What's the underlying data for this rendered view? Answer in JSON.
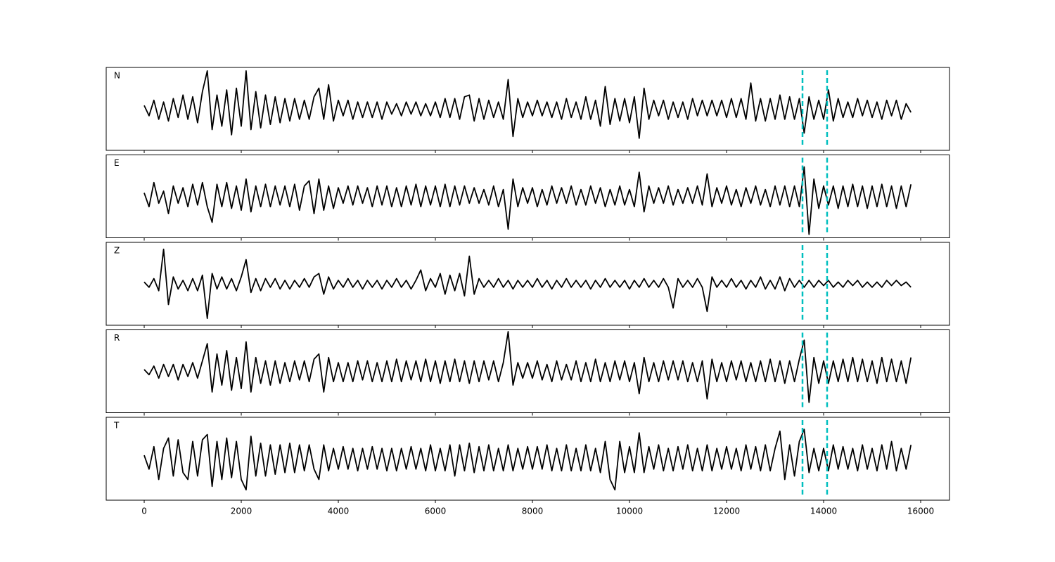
{
  "chart_data": {
    "type": "line",
    "layout": "stacked",
    "x": [
      0,
      100,
      200,
      300,
      400,
      500,
      600,
      700,
      800,
      900,
      1000,
      1100,
      1200,
      1300,
      1400,
      1500,
      1600,
      1700,
      1800,
      1900,
      2000,
      2100,
      2200,
      2300,
      2400,
      2500,
      2600,
      2700,
      2800,
      2900,
      3000,
      3100,
      3200,
      3300,
      3400,
      3500,
      3600,
      3700,
      3800,
      3900,
      4000,
      4100,
      4200,
      4300,
      4400,
      4500,
      4600,
      4700,
      4800,
      4900,
      5000,
      5100,
      5200,
      5300,
      5400,
      5500,
      5600,
      5700,
      5800,
      5900,
      6000,
      6100,
      6200,
      6300,
      6400,
      6500,
      6600,
      6700,
      6800,
      6900,
      7000,
      7100,
      7200,
      7300,
      7400,
      7500,
      7600,
      7700,
      7800,
      7900,
      8000,
      8100,
      8200,
      8300,
      8400,
      8500,
      8600,
      8700,
      8800,
      8900,
      9000,
      9100,
      9200,
      9300,
      9400,
      9500,
      9600,
      9700,
      9800,
      9900,
      10000,
      10100,
      10200,
      10300,
      10400,
      10500,
      10600,
      10700,
      10800,
      10900,
      11000,
      11100,
      11200,
      11300,
      11400,
      11500,
      11600,
      11700,
      11800,
      11900,
      12000,
      12100,
      12200,
      12300,
      12400,
      12500,
      12600,
      12700,
      12800,
      12900,
      13000,
      13100,
      13200,
      13300,
      13400,
      13500,
      13600,
      13700,
      13800,
      13900,
      14000,
      14100,
      14200,
      14300,
      14400,
      14500,
      14600,
      14700,
      14800,
      14900,
      15000,
      15100,
      15200,
      15300,
      15400,
      15500,
      15600,
      15700,
      15800
    ],
    "series": [
      {
        "name": "N",
        "color": "#000000",
        "values": [
          0.1,
          -0.2,
          0.25,
          -0.3,
          0.2,
          -0.35,
          0.3,
          -0.25,
          0.4,
          -0.3,
          0.35,
          -0.4,
          0.5,
          1.1,
          -0.6,
          0.4,
          -0.5,
          0.55,
          -0.75,
          0.6,
          -0.5,
          1.1,
          -0.6,
          0.5,
          -0.55,
          0.4,
          -0.45,
          0.35,
          -0.4,
          0.3,
          -0.35,
          0.3,
          -0.3,
          0.25,
          -0.3,
          0.35,
          0.6,
          -0.3,
          0.7,
          -0.35,
          0.25,
          -0.2,
          0.25,
          -0.3,
          0.2,
          -0.25,
          0.2,
          -0.25,
          0.2,
          -0.3,
          0.2,
          -0.15,
          0.15,
          -0.2,
          0.2,
          -0.15,
          0.2,
          -0.2,
          0.15,
          -0.2,
          0.2,
          -0.25,
          0.3,
          -0.25,
          0.3,
          -0.3,
          0.35,
          0.4,
          -0.35,
          0.3,
          -0.3,
          0.25,
          -0.25,
          0.2,
          -0.3,
          0.85,
          -0.8,
          0.3,
          -0.25,
          0.2,
          -0.2,
          0.25,
          -0.2,
          0.2,
          -0.25,
          0.2,
          -0.3,
          0.3,
          -0.25,
          0.2,
          -0.3,
          0.35,
          -0.3,
          0.25,
          -0.5,
          0.65,
          -0.45,
          0.3,
          -0.35,
          0.3,
          -0.4,
          0.35,
          -0.85,
          0.6,
          -0.3,
          0.25,
          -0.2,
          0.25,
          -0.3,
          0.2,
          -0.25,
          0.2,
          -0.3,
          0.3,
          -0.2,
          0.25,
          -0.2,
          0.25,
          -0.2,
          0.25,
          -0.25,
          0.3,
          -0.25,
          0.3,
          -0.3,
          0.75,
          -0.35,
          0.3,
          -0.35,
          0.3,
          -0.3,
          0.4,
          -0.3,
          0.35,
          -0.3,
          0.3,
          -0.7,
          0.35,
          -0.3,
          0.25,
          -0.3,
          0.55,
          -0.35,
          0.3,
          -0.25,
          0.2,
          -0.25,
          0.3,
          -0.2,
          0.25,
          -0.25,
          0.2,
          -0.3,
          0.25,
          -0.2,
          0.25,
          -0.3,
          0.15,
          -0.1
        ]
      },
      {
        "name": "E",
        "color": "#000000",
        "values": [
          0.1,
          -0.3,
          0.4,
          -0.2,
          0.15,
          -0.5,
          0.3,
          -0.2,
          0.25,
          -0.3,
          0.35,
          -0.25,
          0.4,
          -0.3,
          -0.75,
          0.35,
          -0.3,
          0.4,
          -0.35,
          0.3,
          -0.4,
          0.5,
          -0.45,
          0.3,
          -0.3,
          0.35,
          -0.3,
          0.3,
          -0.25,
          0.3,
          -0.3,
          0.35,
          -0.4,
          0.3,
          0.45,
          -0.5,
          0.5,
          -0.4,
          0.3,
          -0.35,
          0.25,
          -0.2,
          0.3,
          -0.25,
          0.3,
          -0.2,
          0.25,
          -0.3,
          0.3,
          -0.25,
          0.3,
          -0.3,
          0.25,
          -0.3,
          0.3,
          -0.25,
          0.35,
          -0.3,
          0.3,
          -0.25,
          0.3,
          -0.3,
          0.35,
          -0.3,
          0.3,
          -0.25,
          0.3,
          -0.2,
          0.25,
          -0.2,
          0.2,
          -0.25,
          0.3,
          -0.3,
          0.2,
          -0.95,
          0.5,
          -0.3,
          0.25,
          -0.2,
          0.25,
          -0.3,
          0.2,
          -0.25,
          0.3,
          -0.2,
          0.25,
          -0.2,
          0.3,
          -0.25,
          0.2,
          -0.25,
          0.3,
          -0.2,
          0.25,
          -0.3,
          0.2,
          -0.25,
          0.3,
          -0.25,
          0.2,
          -0.3,
          0.7,
          -0.45,
          0.3,
          -0.2,
          0.25,
          -0.2,
          0.3,
          -0.25,
          0.2,
          -0.2,
          0.25,
          -0.2,
          0.3,
          -0.25,
          0.65,
          -0.3,
          0.25,
          -0.2,
          0.3,
          -0.25,
          0.2,
          -0.3,
          0.25,
          -0.2,
          0.3,
          -0.25,
          0.2,
          -0.3,
          0.3,
          -0.25,
          0.3,
          -0.3,
          0.3,
          -0.3,
          0.85,
          -1.1,
          0.5,
          -0.35,
          0.3,
          -0.25,
          0.3,
          -0.35,
          0.3,
          -0.3,
          0.35,
          -0.3,
          0.3,
          -0.35,
          0.3,
          -0.3,
          0.35,
          -0.3,
          0.3,
          -0.35,
          0.3,
          -0.3,
          0.35
        ]
      },
      {
        "name": "Z",
        "color": "#000000",
        "values": [
          0.05,
          -0.1,
          0.15,
          -0.2,
          1.0,
          -0.6,
          0.2,
          -0.15,
          0.1,
          -0.2,
          0.15,
          -0.2,
          0.25,
          -1.0,
          0.3,
          -0.15,
          0.2,
          -0.15,
          0.15,
          -0.2,
          0.2,
          0.7,
          -0.25,
          0.15,
          -0.2,
          0.15,
          -0.1,
          0.15,
          -0.15,
          0.1,
          -0.15,
          0.1,
          -0.1,
          0.15,
          -0.1,
          0.2,
          0.3,
          -0.3,
          0.2,
          -0.15,
          0.1,
          -0.1,
          0.15,
          -0.1,
          0.1,
          -0.15,
          0.1,
          -0.1,
          0.1,
          -0.15,
          0.1,
          -0.1,
          0.15,
          -0.1,
          0.1,
          -0.15,
          0.1,
          0.4,
          -0.2,
          0.15,
          -0.1,
          0.3,
          -0.3,
          0.25,
          -0.2,
          0.3,
          -0.35,
          0.8,
          -0.3,
          0.15,
          -0.1,
          0.1,
          -0.1,
          0.15,
          -0.1,
          0.1,
          -0.15,
          0.1,
          -0.1,
          0.1,
          -0.1,
          0.15,
          -0.1,
          0.1,
          -0.15,
          0.1,
          -0.1,
          0.15,
          -0.1,
          0.1,
          -0.1,
          0.1,
          -0.15,
          0.1,
          -0.1,
          0.15,
          -0.1,
          0.1,
          -0.1,
          0.1,
          -0.15,
          0.1,
          -0.1,
          0.15,
          -0.1,
          0.1,
          -0.1,
          0.15,
          -0.1,
          -0.7,
          0.15,
          -0.1,
          0.1,
          -0.1,
          0.15,
          -0.1,
          -0.8,
          0.2,
          -0.1,
          0.1,
          -0.1,
          0.15,
          -0.1,
          0.1,
          -0.15,
          0.1,
          -0.1,
          0.2,
          -0.15,
          0.1,
          -0.15,
          0.2,
          -0.2,
          0.15,
          -0.1,
          0.1,
          -0.1,
          0.1,
          -0.1,
          0.1,
          -0.05,
          0.1,
          -0.1,
          0.05,
          -0.1,
          0.1,
          -0.05,
          0.1,
          -0.1,
          0.05,
          -0.1,
          0.05,
          -0.1,
          0.1,
          -0.05,
          0.1,
          -0.05,
          0.05,
          -0.1
        ]
      },
      {
        "name": "R",
        "color": "#000000",
        "values": [
          0.05,
          -0.1,
          0.15,
          -0.2,
          0.2,
          -0.15,
          0.2,
          -0.25,
          0.2,
          -0.15,
          0.25,
          -0.2,
          0.3,
          0.8,
          -0.6,
          0.5,
          -0.4,
          0.6,
          -0.55,
          0.4,
          -0.5,
          0.85,
          -0.6,
          0.4,
          -0.35,
          0.3,
          -0.4,
          0.3,
          -0.35,
          0.25,
          -0.3,
          0.3,
          -0.25,
          0.3,
          -0.3,
          0.35,
          0.5,
          -0.6,
          0.4,
          -0.3,
          0.25,
          -0.3,
          0.25,
          -0.3,
          0.3,
          -0.25,
          0.3,
          -0.3,
          0.25,
          -0.3,
          0.3,
          -0.3,
          0.35,
          -0.3,
          0.3,
          -0.25,
          0.3,
          -0.3,
          0.35,
          -0.3,
          0.3,
          -0.35,
          0.3,
          -0.3,
          0.35,
          -0.3,
          0.3,
          -0.35,
          0.3,
          -0.3,
          0.3,
          -0.25,
          0.3,
          -0.3,
          0.25,
          1.15,
          -0.4,
          0.25,
          -0.2,
          0.25,
          -0.2,
          0.3,
          -0.25,
          0.2,
          -0.3,
          0.3,
          -0.25,
          0.2,
          -0.25,
          0.3,
          -0.3,
          0.25,
          -0.3,
          0.35,
          -0.3,
          0.25,
          -0.3,
          0.3,
          -0.25,
          0.3,
          -0.3,
          0.25,
          -0.65,
          0.4,
          -0.3,
          0.25,
          -0.3,
          0.3,
          -0.25,
          0.3,
          -0.25,
          0.3,
          -0.3,
          0.25,
          -0.3,
          0.3,
          -0.8,
          0.35,
          -0.3,
          0.25,
          -0.3,
          0.3,
          -0.25,
          0.3,
          -0.3,
          0.25,
          -0.3,
          0.3,
          -0.3,
          0.35,
          -0.3,
          0.3,
          -0.35,
          0.3,
          -0.3,
          0.35,
          0.9,
          -0.9,
          0.4,
          -0.35,
          0.3,
          -0.35,
          0.3,
          -0.3,
          0.35,
          -0.3,
          0.4,
          -0.3,
          0.35,
          -0.3,
          0.3,
          -0.35,
          0.4,
          -0.3,
          0.35,
          -0.3,
          0.3,
          -0.35,
          0.4
        ]
      },
      {
        "name": "T",
        "color": "#000000",
        "values": [
          0.1,
          -0.3,
          0.35,
          -0.6,
          0.3,
          0.6,
          -0.5,
          0.55,
          -0.4,
          -0.6,
          0.5,
          -0.5,
          0.55,
          0.7,
          -0.8,
          0.5,
          -0.6,
          0.6,
          -0.55,
          0.5,
          -0.6,
          -0.9,
          0.65,
          -0.5,
          0.45,
          -0.5,
          0.4,
          -0.45,
          0.4,
          -0.4,
          0.45,
          -0.4,
          0.4,
          -0.35,
          0.4,
          -0.3,
          -0.6,
          0.4,
          -0.35,
          0.3,
          -0.3,
          0.35,
          -0.3,
          0.3,
          -0.35,
          0.3,
          -0.3,
          0.35,
          -0.3,
          0.3,
          -0.35,
          0.3,
          -0.35,
          0.3,
          -0.3,
          0.35,
          -0.3,
          0.3,
          -0.35,
          0.4,
          -0.35,
          0.3,
          -0.35,
          0.4,
          -0.5,
          0.4,
          -0.35,
          0.45,
          -0.4,
          0.35,
          -0.35,
          0.4,
          -0.35,
          0.3,
          -0.35,
          0.4,
          -0.35,
          0.3,
          -0.3,
          0.35,
          -0.3,
          0.35,
          -0.3,
          0.4,
          -0.35,
          0.3,
          -0.35,
          0.4,
          -0.35,
          0.3,
          -0.35,
          0.4,
          -0.35,
          0.3,
          -0.4,
          0.5,
          -0.6,
          -0.9,
          0.5,
          -0.4,
          0.35,
          -0.4,
          0.75,
          -0.4,
          0.35,
          -0.3,
          0.4,
          -0.35,
          0.3,
          -0.35,
          0.35,
          -0.3,
          0.4,
          -0.35,
          0.3,
          -0.35,
          0.4,
          -0.35,
          0.3,
          -0.3,
          0.35,
          -0.3,
          0.3,
          -0.35,
          0.4,
          -0.3,
          0.35,
          -0.35,
          0.4,
          -0.35,
          0.3,
          0.8,
          -0.6,
          0.4,
          -0.5,
          0.5,
          0.85,
          -0.4,
          0.3,
          -0.35,
          0.3,
          -0.35,
          0.4,
          -0.3,
          0.35,
          -0.3,
          0.3,
          -0.35,
          0.4,
          -0.3,
          0.3,
          -0.35,
          0.4,
          -0.3,
          0.5,
          -0.35,
          0.3,
          -0.3,
          0.4
        ]
      }
    ],
    "xlim": [
      -783,
      16594
    ],
    "xticks": [
      0,
      2000,
      4000,
      6000,
      8000,
      10000,
      12000,
      14000,
      16000
    ],
    "ylim": [
      -1.2,
      1.2
    ],
    "vlines": [
      13565,
      14072
    ],
    "vline_color": "#00bfbf"
  }
}
